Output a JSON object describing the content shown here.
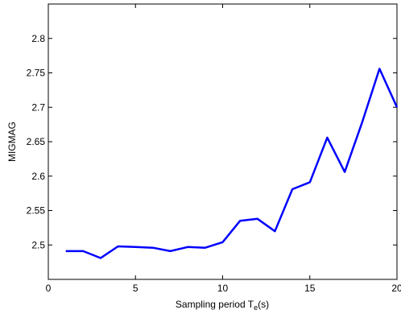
{
  "chart_data": {
    "type": "line",
    "title": "",
    "xlabel_main": "Sampling period T",
    "xlabel_sub": "e",
    "xlabel_tail": "(s)",
    "ylabel": "MIGMAG",
    "xlim": [
      0,
      20
    ],
    "ylim": [
      2.45,
      2.85
    ],
    "xticks": [
      0,
      5,
      10,
      15,
      20
    ],
    "xtick_labels": [
      "0",
      "5",
      "10",
      "15",
      "20"
    ],
    "yticks": [
      2.5,
      2.55,
      2.6,
      2.65,
      2.7,
      2.75,
      2.8
    ],
    "ytick_labels": [
      "2.5",
      "2.55",
      "2.6",
      "2.65",
      "2.7",
      "2.75",
      "2.8"
    ],
    "grid": false,
    "legend": "none",
    "series": [
      {
        "color": "#0000ff",
        "x": [
          1,
          2,
          3,
          4,
          5,
          6,
          7,
          8,
          9,
          10,
          11,
          12,
          13,
          14,
          15,
          16,
          17,
          18,
          19,
          20
        ],
        "y": [
          2.491,
          2.491,
          2.481,
          2.498,
          2.497,
          2.496,
          2.491,
          2.497,
          2.496,
          2.504,
          2.535,
          2.538,
          2.52,
          2.581,
          2.591,
          2.656,
          2.606,
          2.678,
          2.756,
          2.7
        ]
      }
    ]
  }
}
